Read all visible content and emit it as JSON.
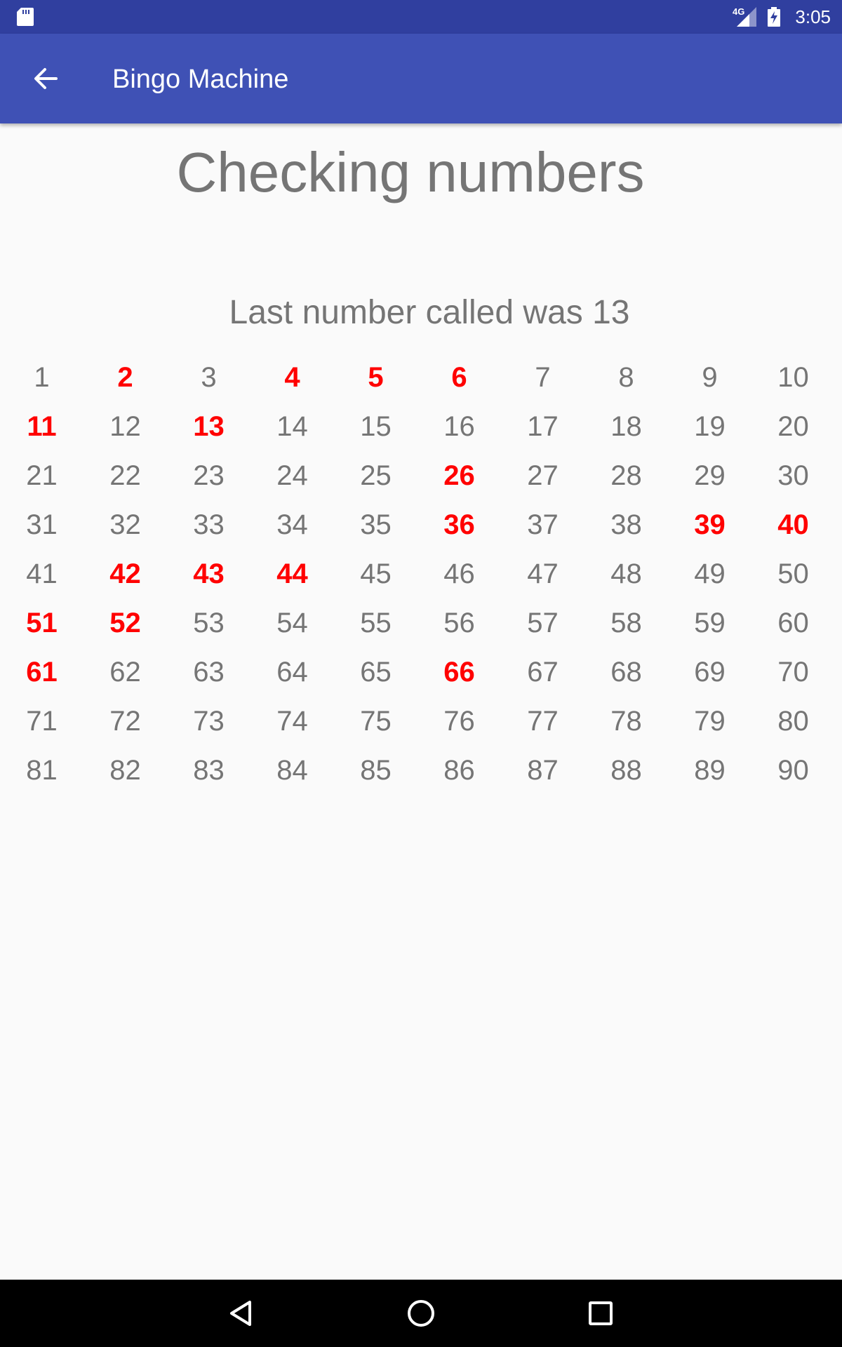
{
  "status_bar": {
    "network": "4G",
    "time": "3:05",
    "icons": [
      "sd-card-icon",
      "signal-icon",
      "battery-charging-icon"
    ]
  },
  "app_bar": {
    "title": "Bingo Machine",
    "back_icon": "arrow-back-icon"
  },
  "main": {
    "heading": "Checking numbers",
    "last_called_text": "Last number called was 13",
    "numbers": [
      {
        "n": "1",
        "c": false
      },
      {
        "n": "2",
        "c": true
      },
      {
        "n": "3",
        "c": false
      },
      {
        "n": "4",
        "c": true
      },
      {
        "n": "5",
        "c": true
      },
      {
        "n": "6",
        "c": true
      },
      {
        "n": "7",
        "c": false
      },
      {
        "n": "8",
        "c": false
      },
      {
        "n": "9",
        "c": false
      },
      {
        "n": "10",
        "c": false
      },
      {
        "n": "11",
        "c": true
      },
      {
        "n": "12",
        "c": false
      },
      {
        "n": "13",
        "c": true
      },
      {
        "n": "14",
        "c": false
      },
      {
        "n": "15",
        "c": false
      },
      {
        "n": "16",
        "c": false
      },
      {
        "n": "17",
        "c": false
      },
      {
        "n": "18",
        "c": false
      },
      {
        "n": "19",
        "c": false
      },
      {
        "n": "20",
        "c": false
      },
      {
        "n": "21",
        "c": false
      },
      {
        "n": "22",
        "c": false
      },
      {
        "n": "23",
        "c": false
      },
      {
        "n": "24",
        "c": false
      },
      {
        "n": "25",
        "c": false
      },
      {
        "n": "26",
        "c": true
      },
      {
        "n": "27",
        "c": false
      },
      {
        "n": "28",
        "c": false
      },
      {
        "n": "29",
        "c": false
      },
      {
        "n": "30",
        "c": false
      },
      {
        "n": "31",
        "c": false
      },
      {
        "n": "32",
        "c": false
      },
      {
        "n": "33",
        "c": false
      },
      {
        "n": "34",
        "c": false
      },
      {
        "n": "35",
        "c": false
      },
      {
        "n": "36",
        "c": true
      },
      {
        "n": "37",
        "c": false
      },
      {
        "n": "38",
        "c": false
      },
      {
        "n": "39",
        "c": true
      },
      {
        "n": "40",
        "c": true
      },
      {
        "n": "41",
        "c": false
      },
      {
        "n": "42",
        "c": true
      },
      {
        "n": "43",
        "c": true
      },
      {
        "n": "44",
        "c": true
      },
      {
        "n": "45",
        "c": false
      },
      {
        "n": "46",
        "c": false
      },
      {
        "n": "47",
        "c": false
      },
      {
        "n": "48",
        "c": false
      },
      {
        "n": "49",
        "c": false
      },
      {
        "n": "50",
        "c": false
      },
      {
        "n": "51",
        "c": true
      },
      {
        "n": "52",
        "c": true
      },
      {
        "n": "53",
        "c": false
      },
      {
        "n": "54",
        "c": false
      },
      {
        "n": "55",
        "c": false
      },
      {
        "n": "56",
        "c": false
      },
      {
        "n": "57",
        "c": false
      },
      {
        "n": "58",
        "c": false
      },
      {
        "n": "59",
        "c": false
      },
      {
        "n": "60",
        "c": false
      },
      {
        "n": "61",
        "c": true
      },
      {
        "n": "62",
        "c": false
      },
      {
        "n": "63",
        "c": false
      },
      {
        "n": "64",
        "c": false
      },
      {
        "n": "65",
        "c": false
      },
      {
        "n": "66",
        "c": true
      },
      {
        "n": "67",
        "c": false
      },
      {
        "n": "68",
        "c": false
      },
      {
        "n": "69",
        "c": false
      },
      {
        "n": "70",
        "c": false
      },
      {
        "n": "71",
        "c": false
      },
      {
        "n": "72",
        "c": false
      },
      {
        "n": "73",
        "c": false
      },
      {
        "n": "74",
        "c": false
      },
      {
        "n": "75",
        "c": false
      },
      {
        "n": "76",
        "c": false
      },
      {
        "n": "77",
        "c": false
      },
      {
        "n": "78",
        "c": false
      },
      {
        "n": "79",
        "c": false
      },
      {
        "n": "80",
        "c": false
      },
      {
        "n": "81",
        "c": false
      },
      {
        "n": "82",
        "c": false
      },
      {
        "n": "83",
        "c": false
      },
      {
        "n": "84",
        "c": false
      },
      {
        "n": "85",
        "c": false
      },
      {
        "n": "86",
        "c": false
      },
      {
        "n": "87",
        "c": false
      },
      {
        "n": "88",
        "c": false
      },
      {
        "n": "89",
        "c": false
      },
      {
        "n": "90",
        "c": false
      }
    ]
  },
  "nav_bar": {
    "buttons": [
      "back-triangle-icon",
      "home-circle-icon",
      "recents-square-icon"
    ]
  },
  "colors": {
    "status_bar": "#303f9f",
    "app_bar": "#3f51b5",
    "called_number": "#ff0000",
    "uncalled_number": "#757575",
    "background": "#fafafa"
  }
}
